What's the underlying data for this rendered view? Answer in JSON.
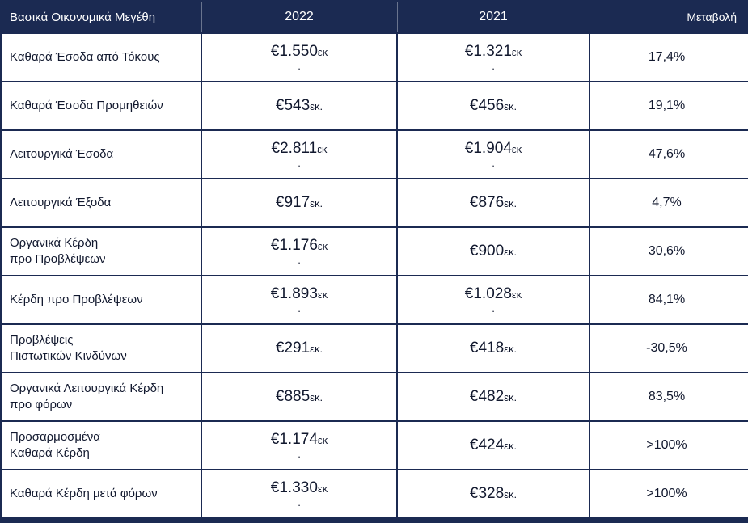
{
  "title": "Βασικά Οικονομικά Μεγέθη",
  "colors": {
    "header_bg": "#1B2A52",
    "border": "#1B2A52",
    "body_text": "#11182E",
    "header_text": "#FFFFFF"
  },
  "header": {
    "metric": "Βασικά Οικονομικά Μεγέθη",
    "col_2022": "2022",
    "col_2021": "2021",
    "change": "Μεταβολή"
  },
  "rows": [
    {
      "label": "Καθαρά Έσοδα από Τόκους",
      "y2022": {
        "n": "€1.550",
        "u": "εκ",
        "t": "."
      },
      "y2021": {
        "n": "€1.321",
        "u": "εκ",
        "t": "."
      },
      "change": "17,4%"
    },
    {
      "label": "Καθαρά Έσοδα Προμηθειών",
      "y2022": {
        "n": "€543",
        "u": "εκ.",
        "t": ""
      },
      "y2021": {
        "n": "€456",
        "u": "εκ.",
        "t": ""
      },
      "change": "19,1%"
    },
    {
      "label": "Λειτουργικά Έσοδα",
      "y2022": {
        "n": "€2.811",
        "u": "εκ",
        "t": "."
      },
      "y2021": {
        "n": "€1.904",
        "u": "εκ",
        "t": "."
      },
      "change": "47,6%"
    },
    {
      "label": "Λειτουργικά Έξοδα",
      "y2022": {
        "n": "€917",
        "u": "εκ.",
        "t": ""
      },
      "y2021": {
        "n": "€876",
        "u": "εκ.",
        "t": ""
      },
      "change": "4,7%"
    },
    {
      "label": "Οργανικά Κέρδη\nπρο Προβλέψεων",
      "y2022": {
        "n": "€1.176",
        "u": "εκ",
        "t": "."
      },
      "y2021": {
        "n": "€900",
        "u": "εκ.",
        "t": ""
      },
      "change": "30,6%"
    },
    {
      "label": "Κέρδη προ Προβλέψεων",
      "y2022": {
        "n": "€1.893",
        "u": "εκ",
        "t": "."
      },
      "y2021": {
        "n": "€1.028",
        "u": "εκ",
        "t": "."
      },
      "change": "84,1%"
    },
    {
      "label": "Προβλέψεις\nΠιστωτικών Κινδύνων",
      "y2022": {
        "n": "€291",
        "u": "εκ.",
        "t": ""
      },
      "y2021": {
        "n": "€418",
        "u": "εκ.",
        "t": ""
      },
      "change": "-30,5%"
    },
    {
      "label": "Οργανικά Λειτουργικά Κέρδη\nπρο φόρων",
      "y2022": {
        "n": "€885",
        "u": "εκ.",
        "t": ""
      },
      "y2021": {
        "n": "€482",
        "u": "εκ.",
        "t": ""
      },
      "change": "83,5%"
    },
    {
      "label": "Προσαρμοσμένα\nΚαθαρά Κέρδη",
      "y2022": {
        "n": "€1.174",
        "u": "εκ",
        "t": "."
      },
      "y2021": {
        "n": "€424",
        "u": "εκ.",
        "t": ""
      },
      "change": ">100%"
    },
    {
      "label": "Καθαρά Κέρδη μετά φόρων",
      "y2022": {
        "n": "€1.330",
        "u": "εκ",
        "t": "."
      },
      "y2021": {
        "n": "€328",
        "u": "εκ.",
        "t": ""
      },
      "change": ">100%"
    }
  ]
}
